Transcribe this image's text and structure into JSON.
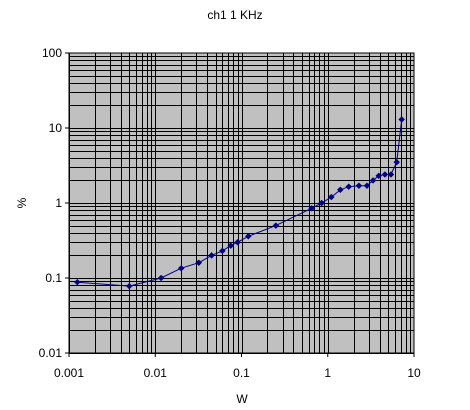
{
  "chart_data": {
    "type": "scatter",
    "title": "ch1 1 KHz",
    "xlabel": "W",
    "ylabel": "%",
    "xscale": "log",
    "yscale": "log",
    "xlim": [
      0.001,
      10
    ],
    "ylim": [
      0.01,
      100
    ],
    "x_tick_labels": [
      "0.001",
      "0.01",
      "0.1",
      "1",
      "10"
    ],
    "y_tick_labels": [
      "0.01",
      "0.1",
      "1",
      "10",
      "100"
    ],
    "grid": true,
    "colors": {
      "plot_background": "#c0c0c0",
      "grid": "#000000",
      "series": "#000080"
    },
    "series": [
      {
        "markers": "diamond",
        "line": "straight",
        "points": [
          {
            "x": 0.00125,
            "y": 0.088
          },
          {
            "x": 0.005,
            "y": 0.078
          },
          {
            "x": 0.0117,
            "y": 0.1
          },
          {
            "x": 0.02,
            "y": 0.135
          },
          {
            "x": 0.032,
            "y": 0.16
          },
          {
            "x": 0.045,
            "y": 0.2
          },
          {
            "x": 0.06,
            "y": 0.23
          },
          {
            "x": 0.075,
            "y": 0.27
          },
          {
            "x": 0.09,
            "y": 0.3
          },
          {
            "x": 0.12,
            "y": 0.36
          },
          {
            "x": 0.25,
            "y": 0.5
          },
          {
            "x": 0.65,
            "y": 0.85
          },
          {
            "x": 0.85,
            "y": 1.0
          },
          {
            "x": 1.1,
            "y": 1.2
          },
          {
            "x": 1.4,
            "y": 1.5
          },
          {
            "x": 1.75,
            "y": 1.65
          },
          {
            "x": 2.3,
            "y": 1.7
          },
          {
            "x": 2.85,
            "y": 1.7
          },
          {
            "x": 3.35,
            "y": 2.0
          },
          {
            "x": 3.9,
            "y": 2.3
          },
          {
            "x": 4.6,
            "y": 2.4
          },
          {
            "x": 5.4,
            "y": 2.4
          },
          {
            "x": 6.3,
            "y": 3.5
          },
          {
            "x": 7.2,
            "y": 13
          }
        ]
      }
    ]
  }
}
